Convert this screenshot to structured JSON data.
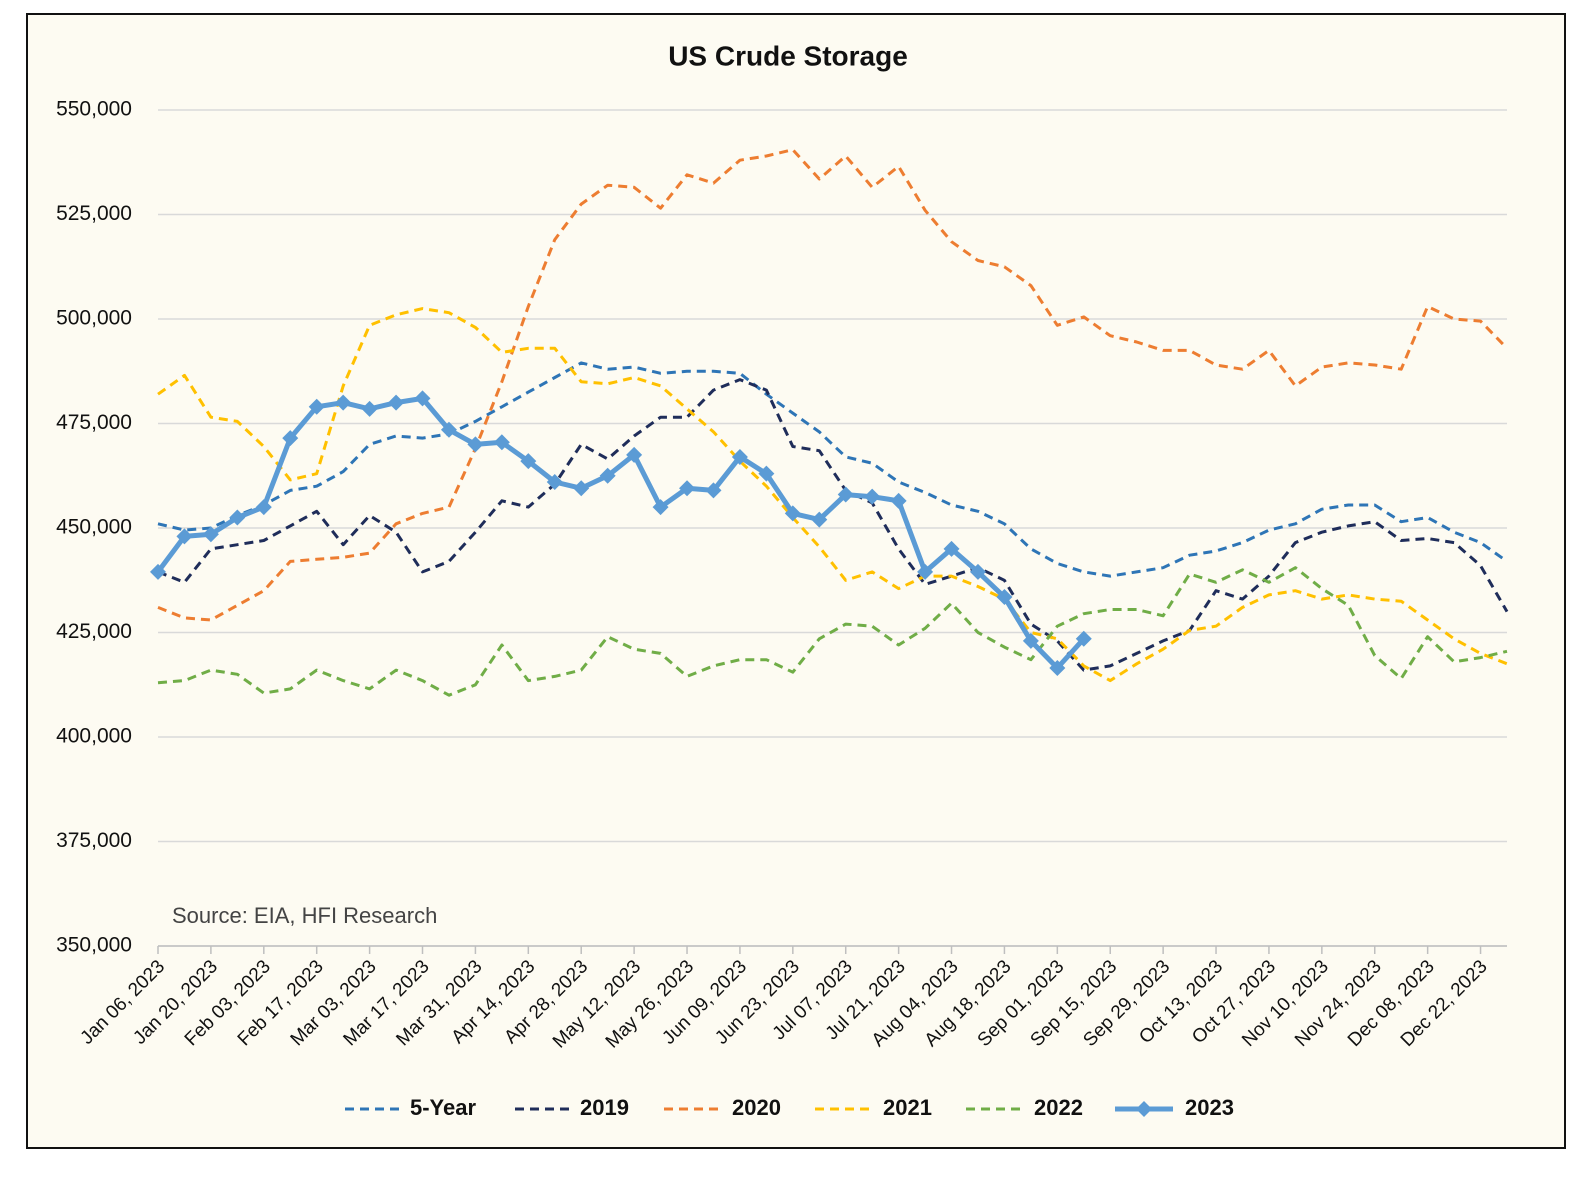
{
  "chart_data": {
    "type": "line",
    "title": "US Crude Storage",
    "annotation": "Source: EIA, HFI Research",
    "categories": [
      "Jan 06, 2023",
      null,
      "Jan 20, 2023",
      null,
      "Feb 03, 2023",
      null,
      "Feb 17, 2023",
      null,
      "Mar 03, 2023",
      null,
      "Mar 17, 2023",
      null,
      "Mar 31, 2023",
      null,
      "Apr 14, 2023",
      null,
      "Apr 28, 2023",
      null,
      "May 12, 2023",
      null,
      "May 26, 2023",
      null,
      "Jun 09, 2023",
      null,
      "Jun 23, 2023",
      null,
      "Jul 07, 2023",
      null,
      "Jul 21, 2023",
      null,
      "Aug 04, 2023",
      null,
      "Aug 18, 2023",
      null,
      "Sep 01, 2023",
      null,
      "Sep 15, 2023",
      null,
      "Sep 29, 2023",
      null,
      "Oct 13, 2023",
      null,
      "Oct 27, 2023",
      null,
      "Nov 10, 2023",
      null,
      "Nov 24, 2023",
      null,
      "Dec 08, 2023",
      null,
      "Dec 22, 2023",
      null
    ],
    "ylim": [
      350000,
      550000
    ],
    "yticks": [
      {
        "value": 350000,
        "label": "350,000"
      },
      {
        "value": 375000,
        "label": "375,000"
      },
      {
        "value": 400000,
        "label": "400,000"
      },
      {
        "value": 425000,
        "label": "425,000"
      },
      {
        "value": 450000,
        "label": "450,000"
      },
      {
        "value": 475000,
        "label": "475,000"
      },
      {
        "value": 500000,
        "label": "500,000"
      },
      {
        "value": 525000,
        "label": "525,000"
      },
      {
        "value": 550000,
        "label": "550,000"
      }
    ],
    "grid": true,
    "legend": "bottom",
    "series": [
      {
        "name": "5-Year",
        "color": "#2e75b6",
        "style": "dashed",
        "values": [
          451000,
          449500,
          450000,
          453000,
          455500,
          459000,
          460000,
          463500,
          470000,
          472000,
          471500,
          472500,
          475500,
          479000,
          482500,
          486000,
          489500,
          488000,
          488500,
          487000,
          487500,
          487500,
          487000,
          482000,
          477500,
          473000,
          467000,
          465500,
          461000,
          458500,
          455500,
          454000,
          451000,
          445000,
          441500,
          439500,
          438500,
          439500,
          440500,
          443500,
          444500,
          446500,
          449500,
          451000,
          454500,
          455500,
          455500,
          451500,
          452500,
          449000,
          446500,
          442000
        ]
      },
      {
        "name": "2019",
        "color": "#1f2d5a",
        "style": "dashed",
        "values": [
          439500,
          437000,
          445000,
          446000,
          447000,
          450500,
          454000,
          446000,
          453000,
          449000,
          439500,
          442000,
          449000,
          456500,
          455000,
          460500,
          470000,
          466500,
          472000,
          476500,
          476500,
          483000,
          485500,
          483000,
          469500,
          468500,
          459000,
          456000,
          445000,
          436500,
          438500,
          440500,
          437500,
          427000,
          423000,
          416000,
          417000,
          420000,
          423000,
          425500,
          435000,
          433000,
          438500,
          446500,
          449000,
          450500,
          451500,
          447000,
          447500,
          446500,
          441000,
          430000
        ]
      },
      {
        "name": "2020",
        "color": "#ed7d31",
        "style": "dashed",
        "values": [
          431000,
          428500,
          428000,
          431500,
          435000,
          442000,
          442500,
          443000,
          444000,
          451000,
          453500,
          455000,
          469000,
          485000,
          503000,
          519000,
          527500,
          532000,
          531500,
          526500,
          534500,
          532500,
          538000,
          539000,
          540500,
          533500,
          539000,
          531500,
          536500,
          526000,
          518500,
          514000,
          512500,
          508000,
          498500,
          500500,
          496000,
          494500,
          492500,
          492500,
          489000,
          488000,
          492500,
          484000,
          488500,
          489500,
          489000,
          488000,
          503000,
          500000,
          499500,
          493000
        ]
      },
      {
        "name": "2021",
        "color": "#ffc000",
        "style": "dashed",
        "values": [
          482000,
          486500,
          476500,
          475500,
          469500,
          461500,
          463000,
          484000,
          498500,
          501000,
          502500,
          501500,
          498000,
          492000,
          493000,
          493000,
          485000,
          484500,
          486000,
          484000,
          478500,
          473000,
          466000,
          460000,
          452500,
          445500,
          437500,
          439500,
          435500,
          438500,
          438500,
          436000,
          433000,
          425000,
          423500,
          417000,
          413500,
          417500,
          421000,
          425500,
          426500,
          431000,
          434000,
          435000,
          433000,
          434000,
          433000,
          432500,
          428000,
          423500,
          420000,
          417500
        ]
      },
      {
        "name": "2022",
        "color": "#70ad47",
        "style": "dashed",
        "values": [
          413000,
          413500,
          416000,
          415000,
          410500,
          411500,
          416000,
          413500,
          411500,
          416000,
          413500,
          410000,
          412500,
          422000,
          413500,
          414500,
          416000,
          424000,
          421000,
          420000,
          414500,
          417000,
          418500,
          418500,
          415500,
          423500,
          427000,
          426500,
          422000,
          426000,
          432000,
          425000,
          421500,
          418500,
          426500,
          429500,
          430500,
          430500,
          429000,
          439000,
          437000,
          440000,
          437000,
          440500,
          435500,
          431500,
          419500,
          414000,
          424000,
          418000,
          419000,
          420500
        ]
      },
      {
        "name": "2023",
        "color": "#5b9bd5",
        "style": "solid",
        "marker": "diamond",
        "values": [
          439500,
          448000,
          448500,
          452500,
          455000,
          471500,
          479000,
          480000,
          478500,
          480000,
          481000,
          473500,
          470000,
          470500,
          466000,
          461000,
          459500,
          462500,
          467500,
          455000,
          459500,
          459000,
          467000,
          463000,
          453500,
          452000,
          458000,
          457500,
          456500,
          439500,
          445000,
          439500,
          433500,
          423000,
          416500,
          423500,
          null,
          null,
          null,
          null,
          null,
          null,
          null,
          null,
          null,
          null,
          null,
          null,
          null,
          null,
          null,
          null
        ]
      }
    ]
  }
}
